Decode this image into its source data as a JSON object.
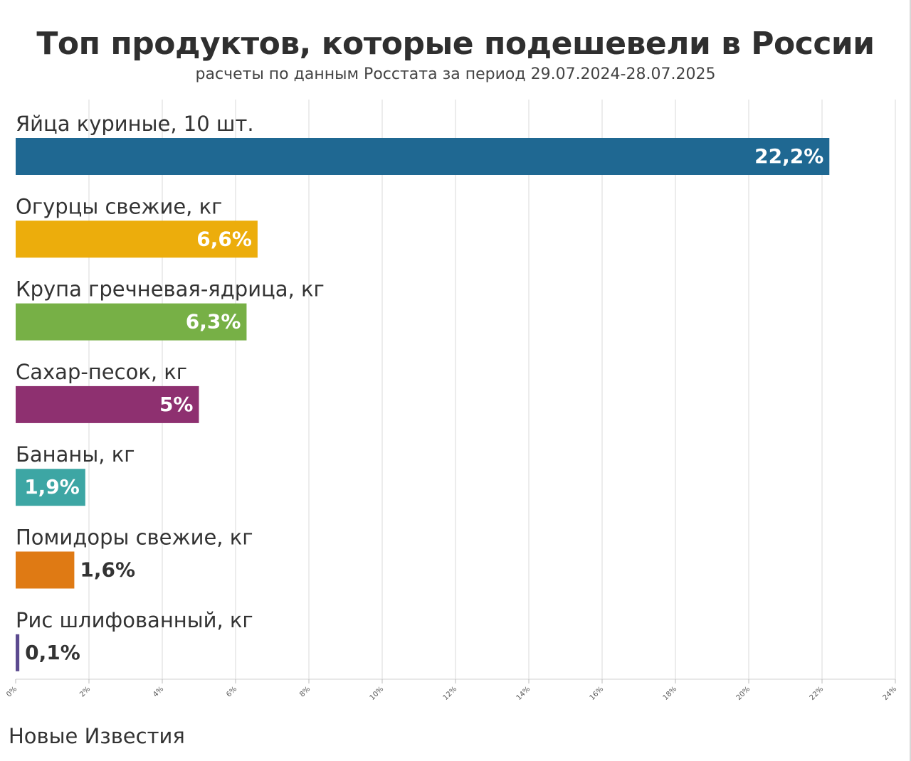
{
  "header": {
    "title": "Топ продуктов, которые подешевели в России",
    "subtitle": "расчеты по данным Росстата за период 29.07.2024-28.07.2025"
  },
  "footer": {
    "source": "Новые Известия"
  },
  "chart_data": {
    "type": "bar",
    "orientation": "horizontal",
    "title": "Топ продуктов, которые подешевели в России",
    "subtitle": "расчеты по данным Росстата за период 29.07.2024-28.07.2025",
    "xlim": [
      0,
      24
    ],
    "grid": true,
    "legend": "none",
    "tick_labels": [
      "0%",
      "2%",
      "4%",
      "6%",
      "8%",
      "10%",
      "12%",
      "14%",
      "16%",
      "18%",
      "20%",
      "22%",
      "24%"
    ],
    "tick_values": [
      0,
      2,
      4,
      6,
      8,
      10,
      12,
      14,
      16,
      18,
      20,
      22,
      24
    ],
    "categories": [
      "Яйца куриные, 10 шт.",
      "Огурцы свежие, кг",
      "Крупа гречневая-ядрица, кг",
      "Сахар-песок, кг",
      "Бананы, кг",
      "Помидоры свежие, кг",
      "Рис шлифованный, кг"
    ],
    "values": [
      22.2,
      6.6,
      6.3,
      5,
      1.9,
      1.6,
      0.1
    ],
    "value_labels": [
      "22,2%",
      "6,6%",
      "6,3%",
      "5%",
      "1,9%",
      "1,6%",
      "0,1%"
    ],
    "colors": [
      "#1f6892",
      "#ecad0c",
      "#77b046",
      "#8e3070",
      "#3da6a4",
      "#df7a14",
      "#5b4a8f"
    ]
  }
}
